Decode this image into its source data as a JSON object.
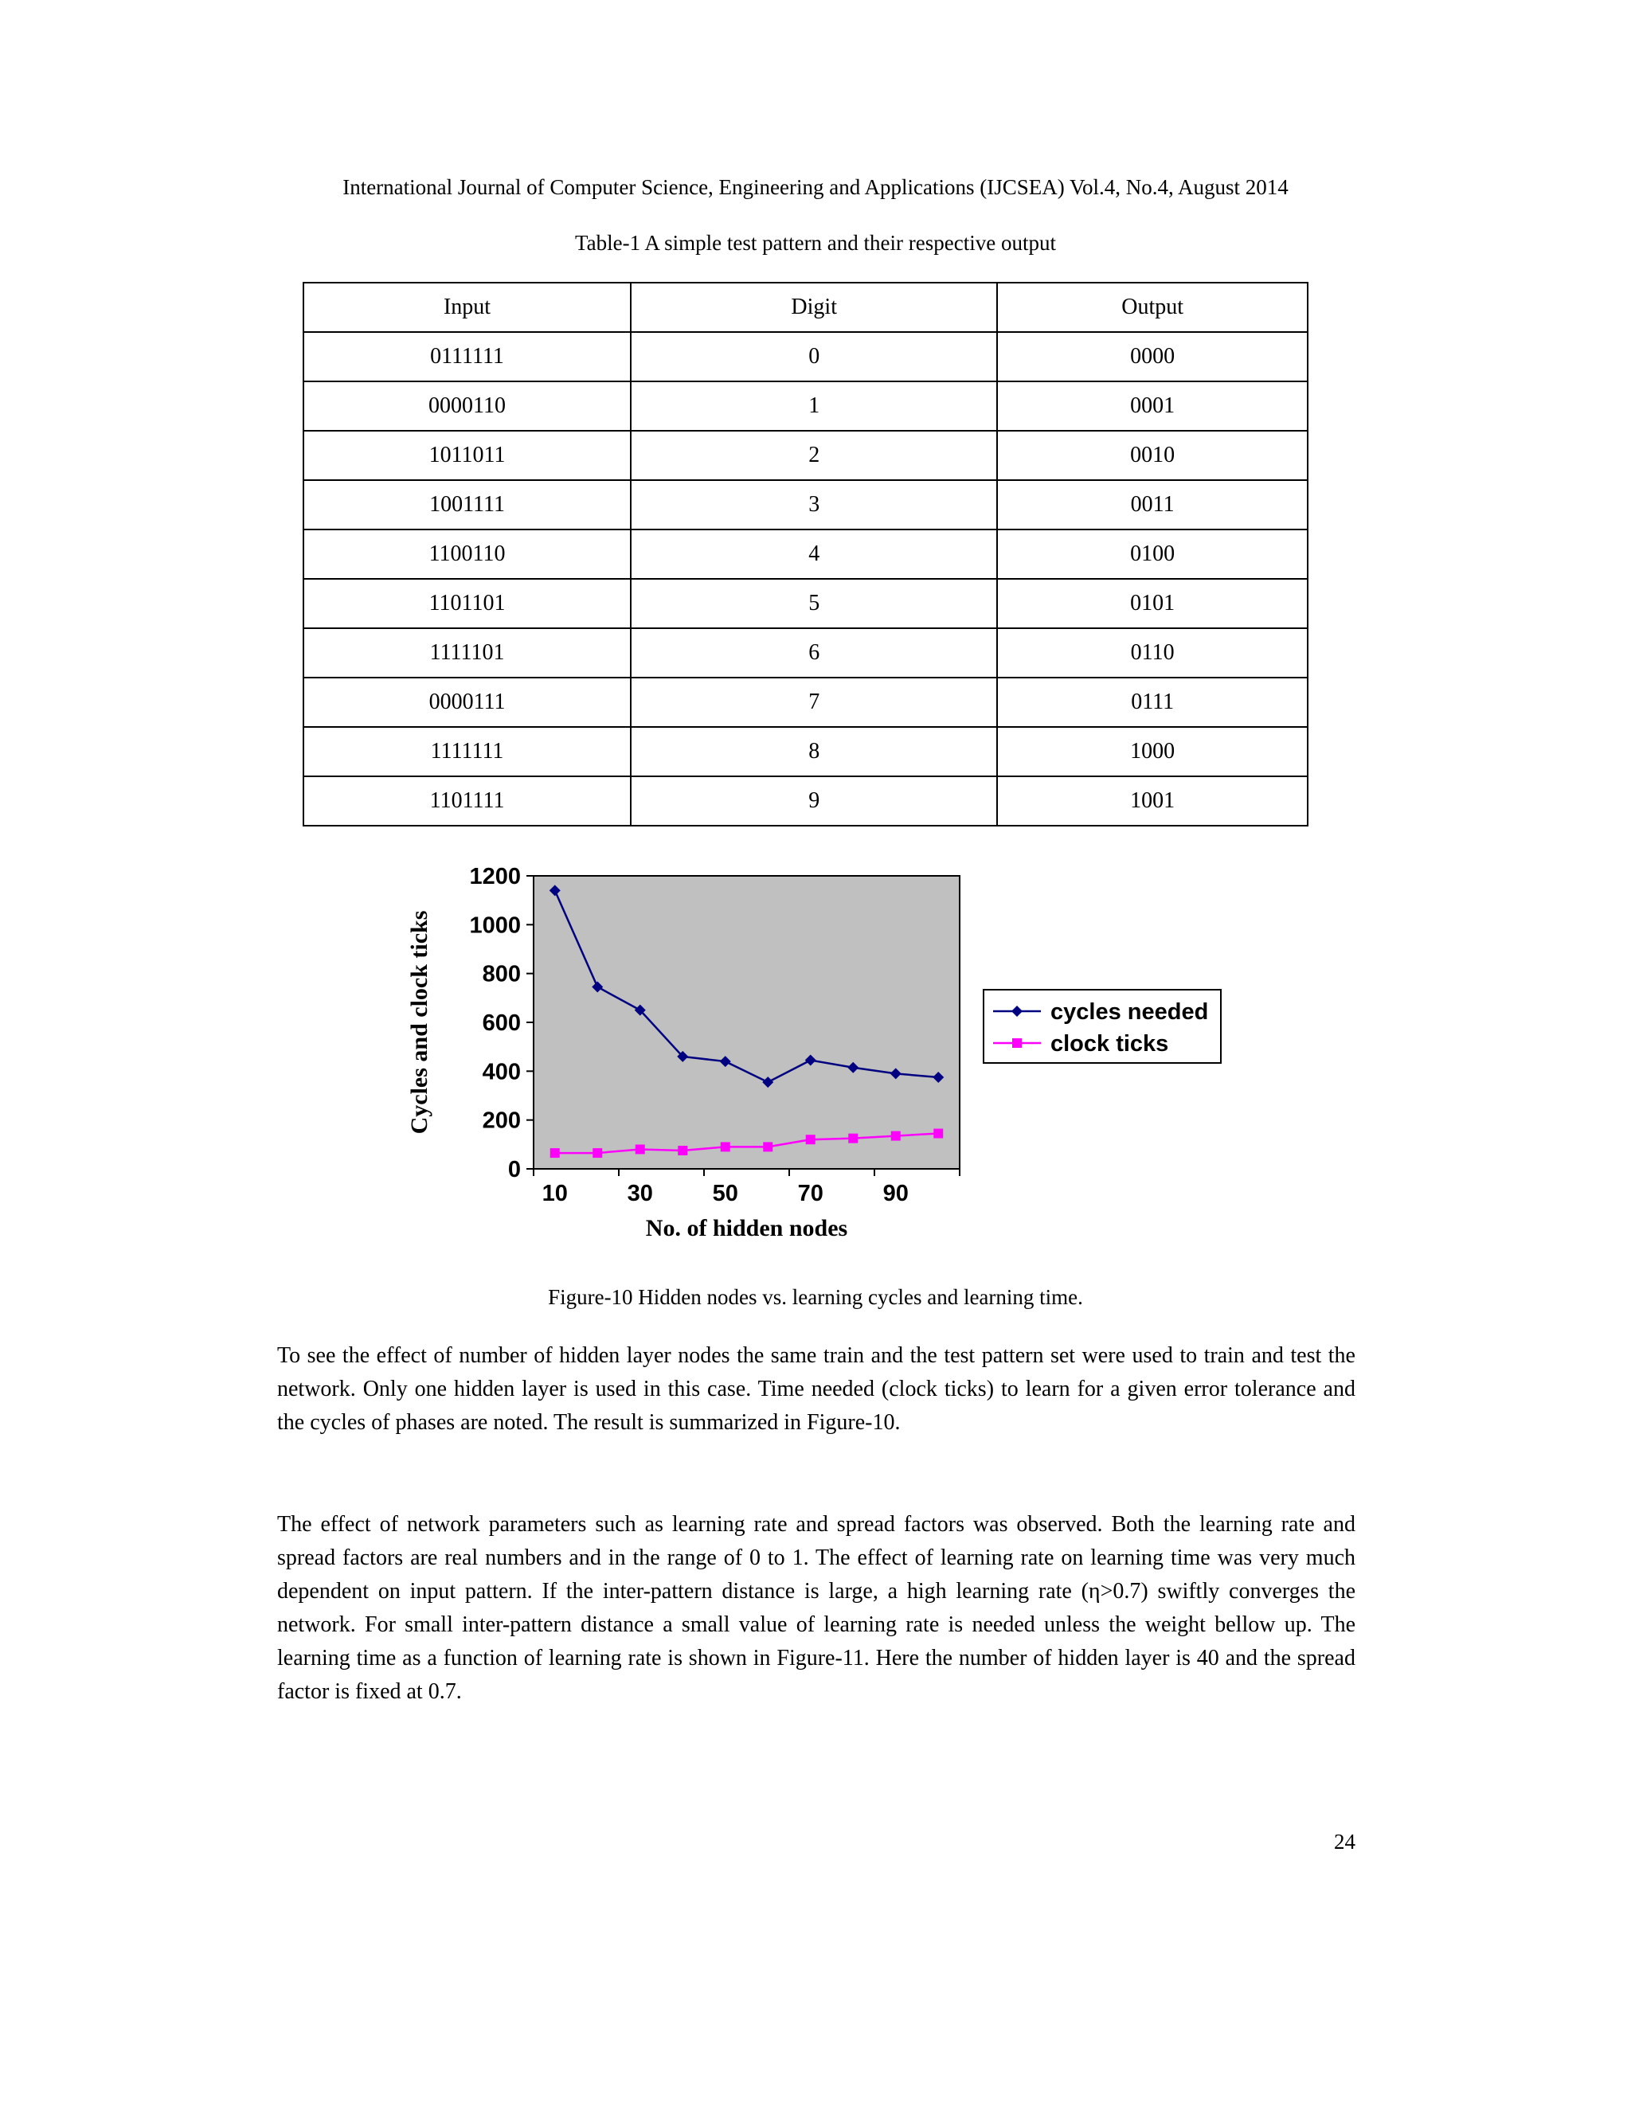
{
  "page": {
    "header": "International Journal of Computer Science, Engineering and Applications (IJCSEA) Vol.4, No.4, August 2014",
    "page_number": "24"
  },
  "table": {
    "caption": "Table-1 A simple test pattern and their respective output",
    "headers": [
      "Input",
      "Digit",
      "Output"
    ],
    "rows": [
      [
        "0111111",
        "0",
        "0000"
      ],
      [
        "0000110",
        "1",
        "0001"
      ],
      [
        "1011011",
        "2",
        "0010"
      ],
      [
        "1001111",
        "3",
        "0011"
      ],
      [
        "1100110",
        "4",
        "0100"
      ],
      [
        "1101101",
        "5",
        "0101"
      ],
      [
        "1111101",
        "6",
        "0110"
      ],
      [
        "0000111",
        "7",
        "0111"
      ],
      [
        "1111111",
        "8",
        "1000"
      ],
      [
        "1101111",
        "9",
        "1001"
      ]
    ]
  },
  "chart_data": {
    "type": "line",
    "x": [
      10,
      20,
      30,
      40,
      50,
      60,
      70,
      80,
      90,
      100
    ],
    "x_tick_labels": [
      "10",
      "30",
      "50",
      "70",
      "90"
    ],
    "series": [
      {
        "name": "cycles needed",
        "color": "#000080",
        "marker": "diamond",
        "values": [
          1140,
          745,
          650,
          460,
          440,
          355,
          445,
          415,
          390,
          375
        ]
      },
      {
        "name": "clock ticks",
        "color": "#ff00ff",
        "marker": "square",
        "values": [
          65,
          65,
          80,
          75,
          90,
          90,
          120,
          125,
          135,
          145
        ]
      }
    ],
    "xlabel": "No. of hidden nodes",
    "ylabel": "Cycles and clock ticks",
    "ylim": [
      0,
      1200
    ],
    "y_ticks": [
      0,
      200,
      400,
      600,
      800,
      1000,
      1200
    ],
    "plot_bg": "#c0c0c0",
    "grid": false,
    "legend_position": "right"
  },
  "figure": {
    "caption": "Figure-10 Hidden nodes vs. learning cycles and learning time."
  },
  "paragraphs": [
    "To see the effect of number of hidden layer nodes the same train and the test pattern set were used to train and test the network. Only one hidden layer is used in this case. Time needed (clock ticks) to learn for a given error tolerance and the cycles of phases are noted. The result is summarized in Figure-10.",
    "The effect of network parameters such as learning rate and spread factors was observed. Both the learning rate and spread factors are real numbers and in the range of 0 to 1. The effect of learning rate on learning time was very much dependent on input pattern. If the inter-pattern distance is large, a high learning rate (η>0.7) swiftly converges the network. For small inter-pattern distance a small value of learning rate is needed unless the weight bellow up. The learning time as a function of learning rate is shown in Figure-11. Here the number of hidden layer is 40 and the spread factor is fixed at 0.7."
  ]
}
